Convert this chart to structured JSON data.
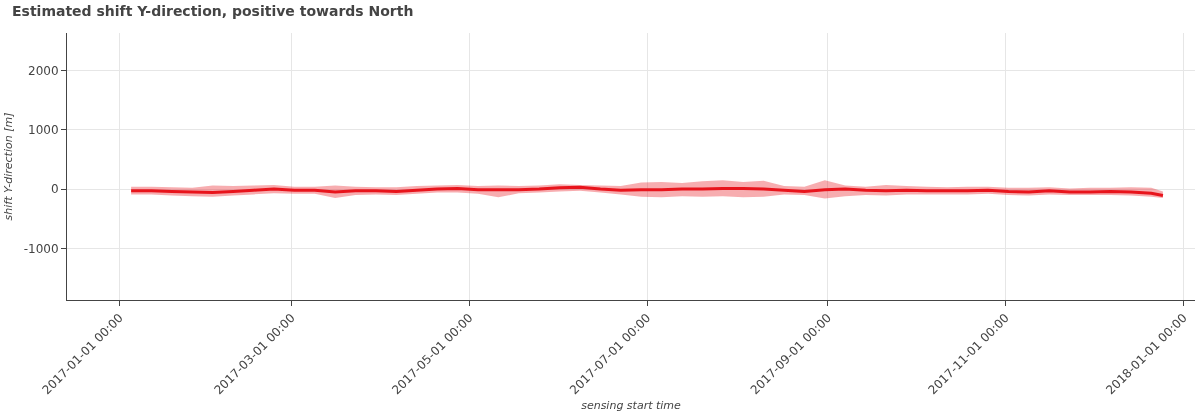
{
  "chart_data": {
    "type": "line",
    "title": "Estimated shift Y-direction, positive towards North",
    "xlabel": "sensing start time",
    "ylabel": "shift Y-direction [m]",
    "x": [
      "2017-01-05",
      "2017-01-12",
      "2017-01-19",
      "2017-01-26",
      "2017-02-02",
      "2017-02-09",
      "2017-02-16",
      "2017-02-23",
      "2017-03-02",
      "2017-03-09",
      "2017-03-16",
      "2017-03-23",
      "2017-03-30",
      "2017-04-06",
      "2017-04-13",
      "2017-04-20",
      "2017-04-27",
      "2017-05-04",
      "2017-05-11",
      "2017-05-18",
      "2017-05-25",
      "2017-06-01",
      "2017-06-08",
      "2017-06-15",
      "2017-06-22",
      "2017-06-29",
      "2017-07-06",
      "2017-07-13",
      "2017-07-20",
      "2017-07-27",
      "2017-08-03",
      "2017-08-10",
      "2017-08-17",
      "2017-08-24",
      "2017-08-31",
      "2017-09-07",
      "2017-09-14",
      "2017-09-21",
      "2017-09-28",
      "2017-10-05",
      "2017-10-12",
      "2017-10-19",
      "2017-10-26",
      "2017-11-02",
      "2017-11-09",
      "2017-11-16",
      "2017-11-23",
      "2017-11-30",
      "2017-12-07",
      "2017-12-14",
      "2017-12-21",
      "2017-12-25"
    ],
    "series": [
      {
        "color": "#e8141c",
        "values": [
          -30,
          -30,
          -40,
          -50,
          -60,
          -40,
          -20,
          0,
          -20,
          -20,
          -50,
          -30,
          -30,
          -40,
          -20,
          0,
          10,
          -10,
          -10,
          -10,
          0,
          20,
          30,
          0,
          -20,
          -10,
          -10,
          0,
          0,
          10,
          10,
          0,
          -20,
          -40,
          -10,
          0,
          -20,
          -30,
          -20,
          -30,
          -30,
          -30,
          -20,
          -40,
          -50,
          -30,
          -50,
          -50,
          -40,
          -50,
          -70,
          -110
        ],
        "lower": [
          -90,
          -90,
          -110,
          -120,
          -130,
          -110,
          -90,
          -70,
          -80,
          -80,
          -150,
          -100,
          -90,
          -100,
          -80,
          -60,
          -60,
          -80,
          -140,
          -70,
          -60,
          -40,
          -30,
          -60,
          -90,
          -130,
          -140,
          -120,
          -130,
          -120,
          -140,
          -130,
          -90,
          -100,
          -160,
          -120,
          -100,
          -110,
          -90,
          -90,
          -90,
          -90,
          -80,
          -100,
          -110,
          -90,
          -100,
          -100,
          -100,
          -110,
          -130,
          -150
        ],
        "upper": [
          40,
          40,
          30,
          20,
          60,
          50,
          60,
          70,
          40,
          40,
          60,
          40,
          30,
          30,
          50,
          60,
          70,
          50,
          60,
          50,
          60,
          80,
          70,
          60,
          50,
          110,
          120,
          100,
          130,
          150,
          120,
          140,
          50,
          40,
          150,
          60,
          40,
          70,
          50,
          40,
          30,
          40,
          40,
          20,
          20,
          30,
          10,
          20,
          20,
          30,
          20,
          -40
        ]
      }
    ],
    "xlim": [
      "2016-12-14",
      "2018-01-05"
    ],
    "ylim": [
      -1870,
      2630
    ],
    "xticks": [
      {
        "value": "2017-01-01",
        "label": "2017-01-01 00:00"
      },
      {
        "value": "2017-03-01",
        "label": "2017-03-01 00:00"
      },
      {
        "value": "2017-05-01",
        "label": "2017-05-01 00:00"
      },
      {
        "value": "2017-07-01",
        "label": "2017-07-01 00:00"
      },
      {
        "value": "2017-09-01",
        "label": "2017-09-01 00:00"
      },
      {
        "value": "2017-11-01",
        "label": "2017-11-01 00:00"
      },
      {
        "value": "2018-01-01",
        "label": "2018-01-01 00:00"
      }
    ],
    "yticks": [
      -1000,
      0,
      1000,
      2000
    ],
    "grid": true,
    "line_style": "solid",
    "marker": "none"
  }
}
